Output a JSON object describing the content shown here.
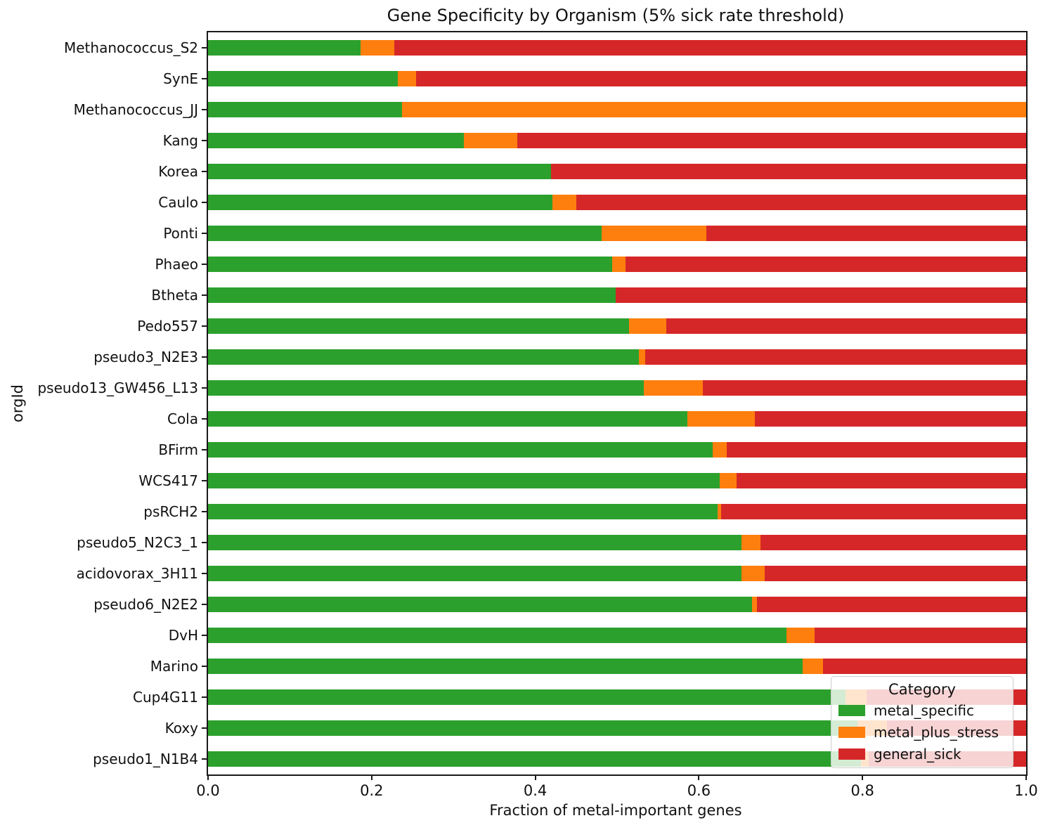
{
  "title": "Gene Specificity by Organism (5% sick rate threshold)",
  "xlabel": "Fraction of metal-important genes",
  "ylabel": "orgId",
  "legend": {
    "title": "Category",
    "items": [
      {
        "label": "metal_specific",
        "color": "#2ca02c"
      },
      {
        "label": "metal_plus_stress",
        "color": "#ff7f0e"
      },
      {
        "label": "general_sick",
        "color": "#d62728"
      }
    ]
  },
  "chart_data": {
    "type": "bar",
    "orientation": "horizontal",
    "stacked": true,
    "title": "Gene Specificity by Organism (5% sick rate threshold)",
    "xlabel": "Fraction of metal-important genes",
    "ylabel": "orgId",
    "xlim": [
      0.0,
      1.0
    ],
    "xticks": [
      0.0,
      0.2,
      0.4,
      0.6,
      0.8,
      1.0
    ],
    "grid": false,
    "legend_position": "lower right",
    "categories": [
      "Methanococcus_S2",
      "SynE",
      "Methanococcus_JJ",
      "Kang",
      "Korea",
      "Caulo",
      "Ponti",
      "Phaeo",
      "Btheta",
      "Pedo557",
      "pseudo3_N2E3",
      "pseudo13_GW456_L13",
      "Cola",
      "BFirm",
      "WCS417",
      "psRCH2",
      "pseudo5_N2C3_1",
      "acidovorax_3H11",
      "pseudo6_N2E2",
      "DvH",
      "Marino",
      "Cup4G11",
      "Koxy",
      "pseudo1_N1B4"
    ],
    "series": [
      {
        "name": "metal_specific",
        "color": "#2ca02c",
        "values": [
          0.186,
          0.232,
          0.237,
          0.313,
          0.419,
          0.421,
          0.481,
          0.494,
          0.498,
          0.515,
          0.527,
          0.533,
          0.586,
          0.617,
          0.625,
          0.623,
          0.652,
          0.652,
          0.665,
          0.707,
          0.727,
          0.779,
          0.794,
          0.798
        ]
      },
      {
        "name": "metal_plus_stress",
        "color": "#ff7f0e",
        "values": [
          0.042,
          0.022,
          0.763,
          0.065,
          0.0,
          0.029,
          0.128,
          0.016,
          0.0,
          0.045,
          0.007,
          0.072,
          0.082,
          0.017,
          0.021,
          0.004,
          0.023,
          0.028,
          0.006,
          0.034,
          0.025,
          0.026,
          0.036,
          0.01
        ]
      },
      {
        "name": "general_sick",
        "color": "#d62728",
        "values": [
          0.772,
          0.746,
          0.0,
          0.622,
          0.581,
          0.55,
          0.391,
          0.49,
          0.502,
          0.44,
          0.466,
          0.395,
          0.332,
          0.366,
          0.354,
          0.373,
          0.325,
          0.32,
          0.329,
          0.259,
          0.248,
          0.195,
          0.17,
          0.192
        ]
      }
    ]
  }
}
